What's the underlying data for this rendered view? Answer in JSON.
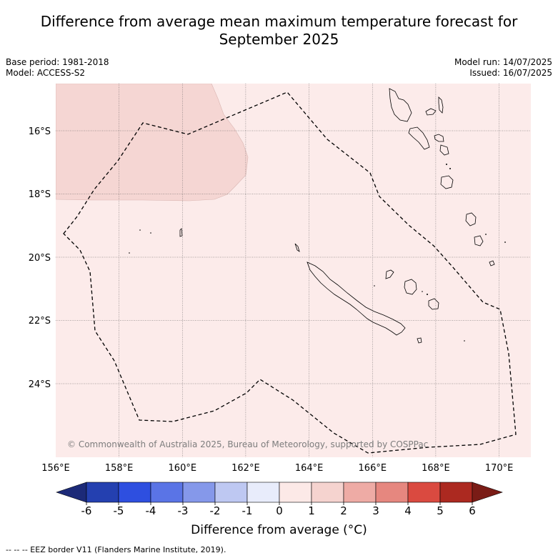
{
  "title_line1": "Difference from average mean maximum temperature forecast for",
  "title_line2": "September 2025",
  "base_period": "Base period: 1981-2018",
  "model": "Model: ACCESS-S2",
  "model_run": "Model run: 14/07/2025",
  "issued": "Issued: 16/07/2025",
  "copyright": "© Commonwealth of Australia 2025, Bureau of Meteorology, supported by COSPPac",
  "lon_labels": [
    "156°E",
    "158°E",
    "160°E",
    "162°E",
    "164°E",
    "166°E",
    "168°E",
    "170°E"
  ],
  "lat_labels": [
    "16°S",
    "18°S",
    "20°S",
    "22°S",
    "24°S"
  ],
  "colorbar": {
    "ticks": [
      "-6",
      "-5",
      "-4",
      "-3",
      "-2",
      "-1",
      "0",
      "1",
      "2",
      "3",
      "4",
      "5",
      "6"
    ],
    "colors": [
      "#1c2a78",
      "#2440b0",
      "#2e4fe0",
      "#5a74e6",
      "#8598ea",
      "#bec8f2",
      "#e8ecfb",
      "#fce9e7",
      "#f5d3cf",
      "#eeaba5",
      "#e6877f",
      "#da4a40",
      "#ac2920",
      "#7a1c16"
    ],
    "title": "Difference from average (°C)"
  },
  "eez_note": "--  --  -- EEZ border V11 (Flanders Marine Institute, 2019).",
  "fill_colors": {
    "background_anomaly": "#fcebea",
    "warm_region": "#f5d6d3"
  }
}
